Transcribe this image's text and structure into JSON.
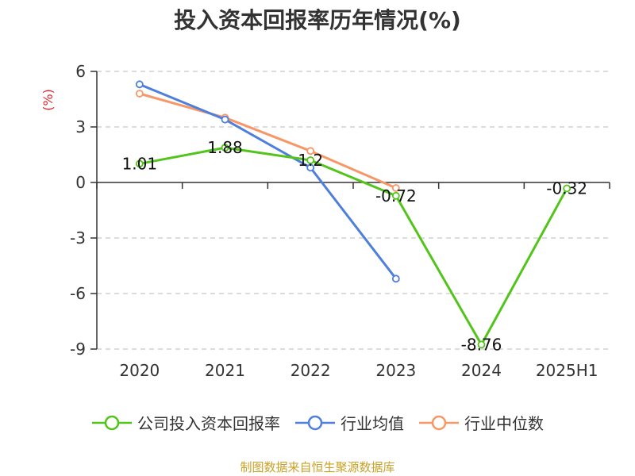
{
  "chart_data": {
    "type": "line",
    "title": "投入资本回报率历年情况(%)",
    "unit": "(%)",
    "categories": [
      "2020",
      "2021",
      "2022",
      "2023",
      "2024",
      "2025H1"
    ],
    "ylim": [
      -9,
      6
    ],
    "yticks": [
      6,
      3,
      0,
      -3,
      -6,
      -9
    ],
    "ytick_labels": [
      "6",
      "3",
      "0",
      "-3",
      "-6",
      "-9"
    ],
    "grid": true,
    "legend_position": "bottom",
    "series": [
      {
        "name": "公司投入资本回报率",
        "color": "#52c41a",
        "values": [
          1.01,
          1.88,
          1.2,
          -0.72,
          -8.76,
          -0.32
        ],
        "labels": [
          "1.01",
          "1.88",
          "1.2",
          "-0.72",
          "-8.76",
          "-0.32"
        ]
      },
      {
        "name": "行业均值",
        "color": "#4f7fdc",
        "values": [
          5.3,
          3.4,
          0.8,
          -5.2,
          null,
          null
        ]
      },
      {
        "name": "行业中位数",
        "color": "#f79767",
        "values": [
          4.8,
          3.5,
          1.7,
          -0.3,
          null,
          null
        ]
      }
    ]
  },
  "source": "制图数据来自恒生聚源数据库"
}
